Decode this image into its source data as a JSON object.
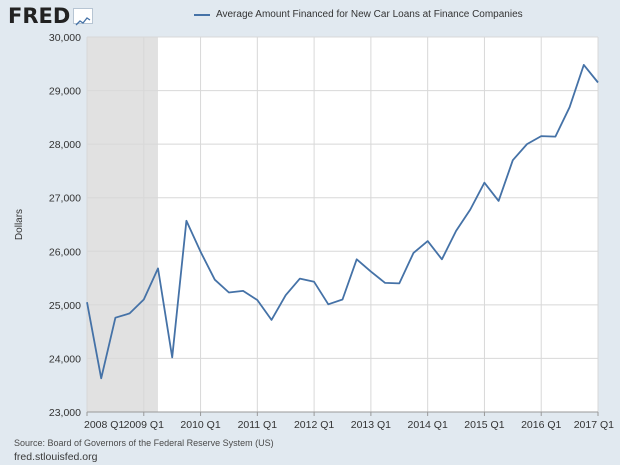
{
  "header": {
    "logo_text": "FRED",
    "legend_label": "Average Amount Financed for New Car Loans at Finance Companies",
    "series_color": "#4572a7"
  },
  "footer": {
    "source": "Source: Board of Governors of the Federal Reserve System (US)",
    "url": "fred.stlouisfed.org"
  },
  "chart_data": {
    "type": "line",
    "title": "",
    "xlabel": "",
    "ylabel": "Dollars",
    "ylim": [
      23000,
      30000
    ],
    "yticks": [
      23000,
      24000,
      25000,
      26000,
      27000,
      28000,
      29000,
      30000
    ],
    "ytick_labels": [
      "23,000",
      "24,000",
      "25,000",
      "26,000",
      "27,000",
      "28,000",
      "29,000",
      "30,000"
    ],
    "xlim": [
      "2008 Q1",
      "2017 Q1"
    ],
    "xtick_labels": [
      "2008 Q1",
      "2009 Q1",
      "2010 Q1",
      "2011 Q1",
      "2012 Q1",
      "2013 Q1",
      "2014 Q1",
      "2015 Q1",
      "2016 Q1",
      "2017 Q1"
    ],
    "grid": true,
    "recession_shading": {
      "start": "2008 Q1",
      "end": "2009 Q2",
      "color": "#e1e1e1"
    },
    "series": [
      {
        "name": "Average Amount Financed for New Car Loans at Finance Companies",
        "color": "#4572a7",
        "x": [
          "2008 Q1",
          "2008 Q2",
          "2008 Q3",
          "2008 Q4",
          "2009 Q1",
          "2009 Q2",
          "2009 Q3",
          "2009 Q4",
          "2010 Q1",
          "2010 Q2",
          "2010 Q3",
          "2010 Q4",
          "2011 Q1",
          "2011 Q2",
          "2011 Q3",
          "2011 Q4",
          "2012 Q1",
          "2012 Q2",
          "2012 Q3",
          "2012 Q4",
          "2013 Q1",
          "2013 Q2",
          "2013 Q3",
          "2013 Q4",
          "2014 Q1",
          "2014 Q2",
          "2014 Q3",
          "2014 Q4",
          "2015 Q1",
          "2015 Q2",
          "2015 Q3",
          "2015 Q4",
          "2016 Q1",
          "2016 Q2",
          "2016 Q3",
          "2016 Q4",
          "2017 Q1"
        ],
        "values": [
          25050,
          23630,
          24760,
          24840,
          25100,
          25680,
          24020,
          26570,
          25990,
          25470,
          25230,
          25260,
          25090,
          24720,
          25180,
          25490,
          25430,
          25010,
          25100,
          25850,
          25620,
          25410,
          25400,
          25970,
          26190,
          25850,
          26380,
          26780,
          27280,
          26940,
          27700,
          28000,
          28150,
          28140,
          28690,
          29480,
          29150
        ]
      }
    ]
  }
}
